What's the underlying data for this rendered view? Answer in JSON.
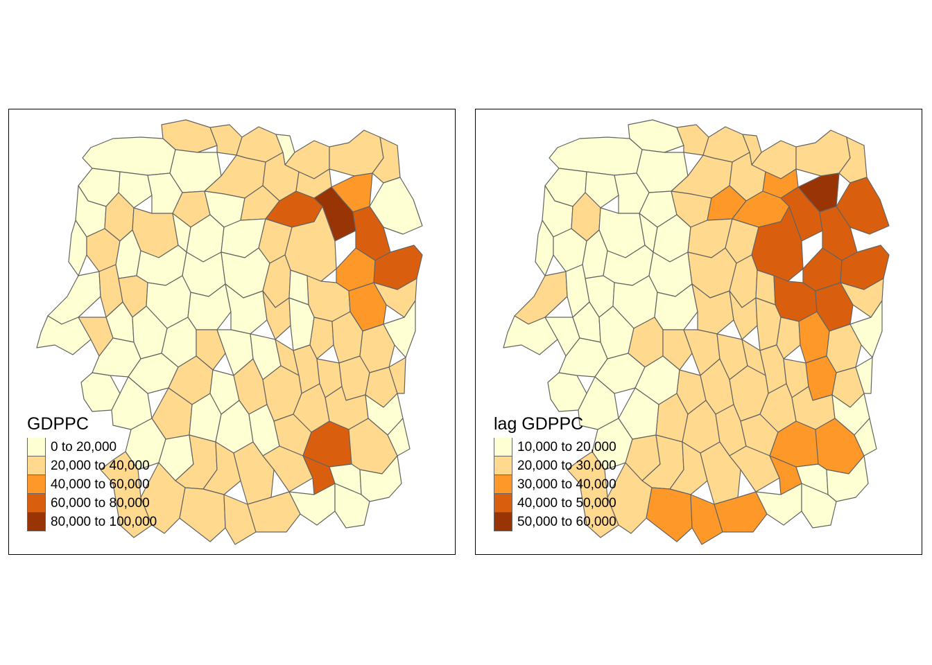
{
  "maps": [
    {
      "id": "left",
      "legend_title": "GDPPC",
      "classes": [
        {
          "label": "0 to 20,000",
          "color": "#FFFFD4"
        },
        {
          "label": "20,000 to 40,000",
          "color": "#FED98E"
        },
        {
          "label": "40,000 to 60,000",
          "color": "#FE9929"
        },
        {
          "label": "60,000 to 80,000",
          "color": "#D95F0E"
        },
        {
          "label": "80,000 to 100,000",
          "color": "#993404"
        }
      ]
    },
    {
      "id": "right",
      "legend_title": "lag GDPPC",
      "classes": [
        {
          "label": "10,000 to 20,000",
          "color": "#FFFFD4"
        },
        {
          "label": "20,000 to 30,000",
          "color": "#FED98E"
        },
        {
          "label": "30,000 to 40,000",
          "color": "#FE9929"
        },
        {
          "label": "40,000 to 50,000",
          "color": "#D95F0E"
        },
        {
          "label": "50,000 to 60,000",
          "color": "#993404"
        }
      ]
    }
  ]
}
